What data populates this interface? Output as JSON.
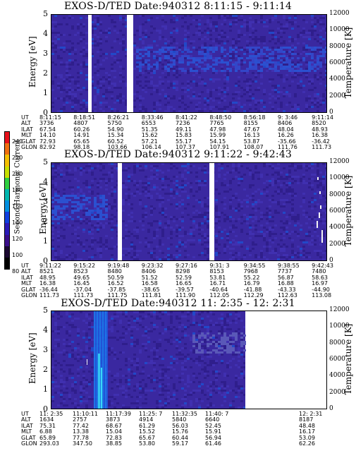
{
  "panels": [
    {
      "title": "EXOS-D/TED   Date:940312   8:11:15 - 9:11:14",
      "ylabel_left": "Energy [eV]",
      "ylabel_right": "Temperature [K]",
      "orbit_rows": [
        {
          "label": "UT",
          "values": [
            "8:11:15",
            "8:18:51",
            "8:26:21",
            "8:33:46",
            "8:41:22",
            "8:48:50",
            "8:56:18",
            "9: 3:46",
            "9:11:14"
          ]
        },
        {
          "label": "ALT",
          "values": [
            "3736",
            "4807",
            "5750",
            "6553",
            "7236",
            "7765",
            "8155",
            "8406",
            "8520"
          ]
        },
        {
          "label": "ILAT",
          "values": [
            "67.54",
            "60.26",
            "54.90",
            "51.35",
            "49.11",
            "47.98",
            "47.67",
            "48.04",
            "48.93"
          ]
        },
        {
          "label": "MLT",
          "values": [
            "14.10",
            "14.91",
            "15.34",
            "15.62",
            "15.83",
            "15.99",
            "16.13",
            "16.26",
            "16.38"
          ]
        },
        {
          "label": "GLAT",
          "values": [
            "72.93",
            "65.65",
            "60.52",
            "57.21",
            "55.17",
            "54.15",
            "53.87",
            "-35.66",
            "-36.42"
          ]
        },
        {
          "label": "GLON",
          "values": [
            "82.92",
            "98.18",
            "103.66",
            "106.14",
            "107.37",
            "107.91",
            "108.07",
            "111.76",
            "111.73"
          ]
        }
      ]
    },
    {
      "title": "EXOS-D/TED   Date:940312   9:11:22 - 9:42:43",
      "ylabel_left": "Energy [eV]",
      "ylabel_right": "Temperature [K]",
      "orbit_rows": [
        {
          "label": "UT",
          "values": [
            "9:11:22",
            "9:15:22",
            "9:19:48",
            "9:23:32",
            "9:27:16",
            "9:31: 3",
            "9:34:55",
            "9:38:55",
            "9:42:43"
          ]
        },
        {
          "label": "ALT",
          "values": [
            "8521",
            "8523",
            "8480",
            "8406",
            "8298",
            "8153",
            "7968",
            "7737",
            "7480"
          ]
        },
        {
          "label": "ILAT",
          "values": [
            "48.95",
            "49.65",
            "50.59",
            "51.52",
            "52.59",
            "53.81",
            "55.22",
            "56.87",
            "58.63"
          ]
        },
        {
          "label": "MLT",
          "values": [
            "16.38",
            "16.45",
            "16.52",
            "16.58",
            "16.65",
            "16.71",
            "16.79",
            "16.88",
            "16.97"
          ]
        },
        {
          "label": "GLAT",
          "values": [
            "-36.44",
            "-37.04",
            "-37.85",
            "-38.65",
            "-39.57",
            "-40.64",
            "-41.88",
            "-43.33",
            "-44.90"
          ]
        },
        {
          "label": "GLON",
          "values": [
            "111.73",
            "111.73",
            "111.75",
            "111.81",
            "111.90",
            "112.05",
            "112.29",
            "112.63",
            "113.08"
          ]
        }
      ]
    },
    {
      "title": "EXOS-D/TED   Date:940312   11: 2:35 - 12: 2:31",
      "ylabel_left": "Energy [eV]",
      "ylabel_right": "Temperature [K]",
      "orbit_rows": [
        {
          "label": "UT",
          "values": [
            "11: 2:35",
            "11:10:11",
            "11:17:39",
            "11:25: 7",
            "11:32:35",
            "11:40: 7",
            "12: 2:31"
          ]
        },
        {
          "label": "ALT",
          "values": [
            "1634",
            "2757",
            "3873",
            "4914",
            "5840",
            "6640",
            "8187"
          ]
        },
        {
          "label": "ILAT",
          "values": [
            "75.31",
            "77.42",
            "68.67",
            "61.29",
            "56.03",
            "52.45",
            "48.48"
          ]
        },
        {
          "label": "MLT",
          "values": [
            "6.88",
            "13.38",
            "15.04",
            "15.52",
            "15.76",
            "15.91",
            "16.17"
          ]
        },
        {
          "label": "GLAT",
          "values": [
            "65.89",
            "77.78",
            "72.83",
            "65.67",
            "60.44",
            "56.94",
            "53.09"
          ]
        },
        {
          "label": "GLON",
          "values": [
            "293.03",
            "347.50",
            "38.85",
            "53.80",
            "59.17",
            "61.46",
            "62.26"
          ]
        }
      ]
    }
  ],
  "colorbar": {
    "label": "Second Harmonic Current",
    "ticks": [
      "240",
      "220",
      "200",
      "180",
      "160",
      "140",
      "120",
      "100",
      "80"
    ],
    "colors": [
      "#e8101a",
      "#f07010",
      "#f5c000",
      "#c8e000",
      "#30d040",
      "#00b8b0",
      "#0090e0",
      "#1040e0",
      "#2a1ab8",
      "#3a0e8a",
      "#1a0830",
      "#000000"
    ]
  },
  "chart_data": [
    {
      "type": "heatmap",
      "title": "EXOS-D/TED   Date:940312   8:11:15 - 9:11:14",
      "xlabel": "UT",
      "ylabel": "Energy [eV]",
      "y2label": "Temperature [K]",
      "x_ticks": [
        "8:11:15",
        "8:18:51",
        "8:26:21",
        "8:33:46",
        "8:41:22",
        "8:48:50",
        "8:56:18",
        "9: 3:46",
        "9:11:14"
      ],
      "ylim": [
        0,
        5
      ],
      "y_ticks": [
        0,
        1,
        2,
        3,
        4,
        5
      ],
      "y2lim": [
        0,
        12000
      ],
      "y2_ticks": [
        0,
        2000,
        4000,
        6000,
        8000,
        10000,
        12000
      ],
      "data_gaps_ut": [
        [
          "8:18:35",
          "8:19:00"
        ],
        [
          "8:26:10",
          "8:26:50"
        ]
      ],
      "dominant_level": "dark blue background with brighter blue band near 3 eV"
    },
    {
      "type": "heatmap",
      "title": "EXOS-D/TED   Date:940312   9:11:22 - 9:42:43",
      "xlabel": "UT",
      "ylabel": "Energy [eV]",
      "y2label": "Temperature [K]",
      "x_ticks": [
        "9:11:22",
        "9:15:22",
        "9:19:48",
        "9:23:32",
        "9:27:16",
        "9:31: 3",
        "9:34:55",
        "9:38:55",
        "9:42:43"
      ],
      "ylim": [
        0,
        5
      ],
      "y_ticks": [
        0,
        1,
        2,
        3,
        4,
        5
      ],
      "y2lim": [
        0,
        12000
      ],
      "y2_ticks": [
        0,
        2000,
        4000,
        6000,
        8000,
        10000,
        12000
      ],
      "data_gaps_ut": [
        [
          "9:19:30",
          "9:20:00"
        ],
        [
          "9:30:40",
          "9:31:10"
        ]
      ],
      "dominant_level": "dark blue background with brighter blue band near 3 eV, white spikes near 9:42"
    },
    {
      "type": "heatmap",
      "title": "EXOS-D/TED   Date:940312   11: 2:35 - 12: 2:31",
      "xlabel": "UT",
      "ylabel": "Energy [eV]",
      "y2label": "Temperature [K]",
      "x_ticks": [
        "11: 2:35",
        "11:10:11",
        "11:17:39",
        "11:25: 7",
        "11:32:35",
        "11:40: 7",
        "12: 2:31"
      ],
      "ylim": [
        0,
        5
      ],
      "y_ticks": [
        0,
        1,
        2,
        3,
        4,
        5
      ],
      "y2lim": [
        0,
        12000
      ],
      "y2_ticks": [
        0,
        2000,
        4000,
        6000,
        8000,
        10000,
        12000
      ],
      "data_end_ut": "11:46:00",
      "dominant_level": "dark blue background with bright blue/cyan vertical streaks near 11:10-11:14"
    }
  ]
}
